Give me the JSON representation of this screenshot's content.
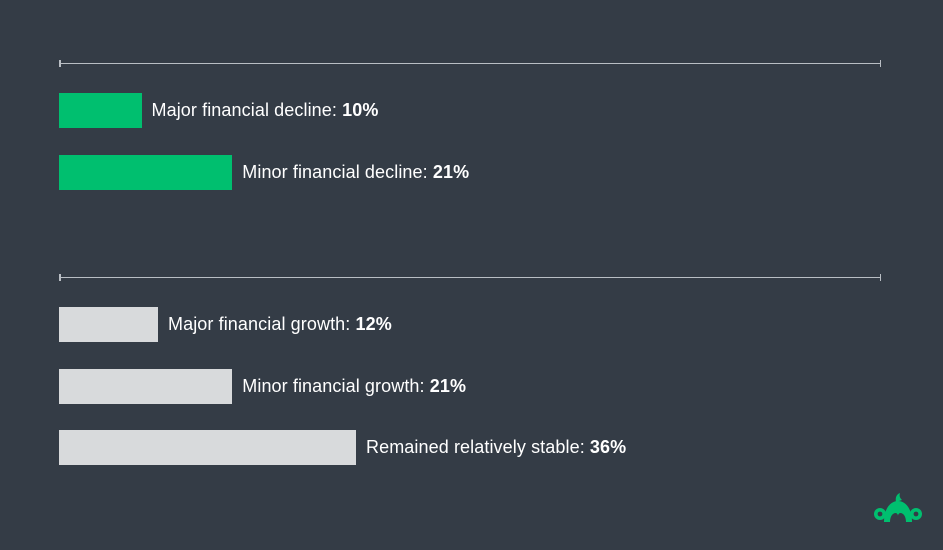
{
  "chart_data": {
    "type": "bar",
    "orientation": "horizontal",
    "xlim": [
      0,
      100
    ],
    "colors": {
      "decline": "#00bf6f",
      "growth": "#d8dadc",
      "rule": "#b9bec4",
      "background": "#343c46"
    },
    "groups": [
      {
        "color_key": "decline",
        "bars": [
          {
            "label": "Major financial decline",
            "value": 10,
            "value_text": "10%"
          },
          {
            "label": "Minor financial decline",
            "value": 21,
            "value_text": "21%"
          }
        ]
      },
      {
        "color_key": "growth",
        "bars": [
          {
            "label": "Major financial growth",
            "value": 12,
            "value_text": "12%"
          },
          {
            "label": "Minor financial growth",
            "value": 21,
            "value_text": "21%"
          },
          {
            "label": "Remained relatively stable",
            "value": 36,
            "value_text": "36%"
          }
        ]
      }
    ]
  },
  "logo": {
    "icon": "surveymonkey-logo-icon",
    "color": "#00bf6f"
  }
}
